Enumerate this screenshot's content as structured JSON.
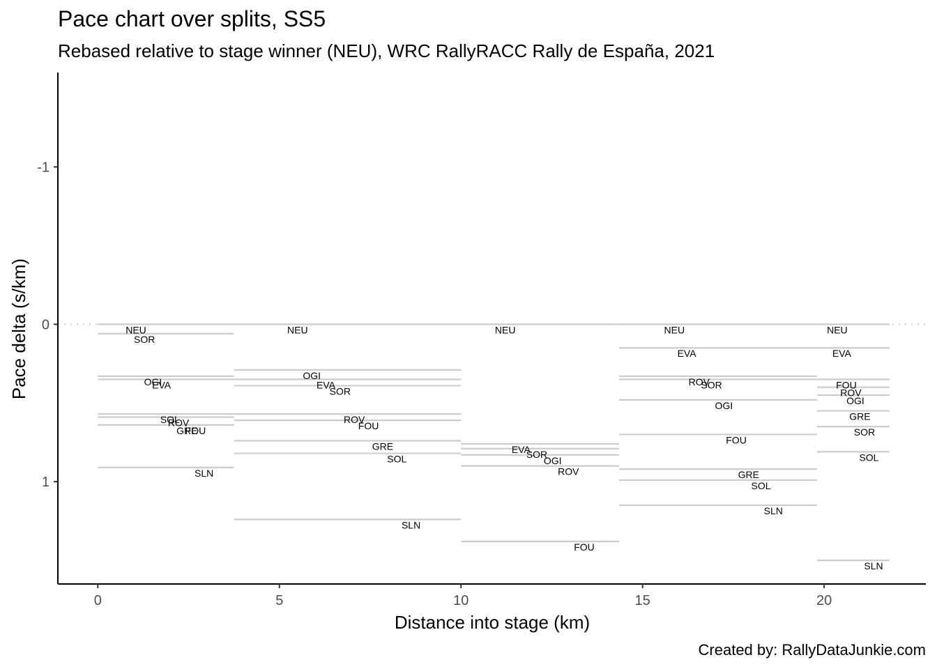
{
  "chart_data": {
    "type": "line",
    "title": "Pace chart over splits, SS5",
    "subtitle": "Rebased relative to stage winner (NEU), WRC RallyRACC Rally de España, 2021",
    "caption": "Created by: RallyDataJunkie.com",
    "xlabel": "Distance into stage (km)",
    "ylabel": "Pace delta (s/km)",
    "xlim": [
      -1.1,
      22.8
    ],
    "ylim": [
      -1.6,
      1.65
    ],
    "y_reversed": true,
    "x_ticks": [
      0,
      5,
      10,
      15,
      20
    ],
    "y_ticks": [
      -1,
      0,
      1
    ],
    "y_tick_labels": [
      "-1",
      "0",
      "1"
    ],
    "reference_line": {
      "y": 0,
      "style": "dotted"
    },
    "grid": false,
    "legend": "none",
    "colors": {
      "segment": "#cccccc",
      "reference": "#cccccc",
      "axis": "#000000",
      "tick_text": "#4d4d4d"
    },
    "splits": [
      {
        "x_start": 0,
        "x_end": 3.75,
        "series": [
          {
            "name": "NEU",
            "value": 0.0
          },
          {
            "name": "SOR",
            "value": 0.06
          },
          {
            "name": "OGI",
            "value": 0.33
          },
          {
            "name": "EVA",
            "value": 0.35
          },
          {
            "name": "SOL",
            "value": 0.57
          },
          {
            "name": "ROV",
            "value": 0.59
          },
          {
            "name": "GRE",
            "value": 0.64
          },
          {
            "name": "FOU",
            "value": 0.64
          },
          {
            "name": "SLN",
            "value": 0.91
          }
        ]
      },
      {
        "x_start": 3.75,
        "x_end": 10.0,
        "series": [
          {
            "name": "NEU",
            "value": 0.0
          },
          {
            "name": "OGI",
            "value": 0.29
          },
          {
            "name": "EVA",
            "value": 0.35
          },
          {
            "name": "SOR",
            "value": 0.39
          },
          {
            "name": "ROV",
            "value": 0.57
          },
          {
            "name": "FOU",
            "value": 0.61
          },
          {
            "name": "GRE",
            "value": 0.74
          },
          {
            "name": "SOL",
            "value": 0.82
          },
          {
            "name": "SLN",
            "value": 1.24
          }
        ]
      },
      {
        "x_start": 10.0,
        "x_end": 14.35,
        "series": [
          {
            "name": "NEU",
            "value": 0.0
          },
          {
            "name": "EVA",
            "value": 0.76
          },
          {
            "name": "SOR",
            "value": 0.79
          },
          {
            "name": "OGI",
            "value": 0.83
          },
          {
            "name": "ROV",
            "value": 0.9
          },
          {
            "name": "FOU",
            "value": 1.38
          }
        ]
      },
      {
        "x_start": 14.35,
        "x_end": 19.8,
        "series": [
          {
            "name": "NEU",
            "value": 0.0
          },
          {
            "name": "EVA",
            "value": 0.15
          },
          {
            "name": "ROV",
            "value": 0.33
          },
          {
            "name": "SOR",
            "value": 0.35
          },
          {
            "name": "OGI",
            "value": 0.48
          },
          {
            "name": "FOU",
            "value": 0.7
          },
          {
            "name": "GRE",
            "value": 0.92
          },
          {
            "name": "SOL",
            "value": 0.99
          },
          {
            "name": "SLN",
            "value": 1.15
          }
        ]
      },
      {
        "x_start": 19.8,
        "x_end": 21.8,
        "series": [
          {
            "name": "NEU",
            "value": 0.0
          },
          {
            "name": "EVA",
            "value": 0.15
          },
          {
            "name": "FOU",
            "value": 0.35
          },
          {
            "name": "ROV",
            "value": 0.4
          },
          {
            "name": "OGI",
            "value": 0.45
          },
          {
            "name": "GRE",
            "value": 0.55
          },
          {
            "name": "SOR",
            "value": 0.65
          },
          {
            "name": "SOL",
            "value": 0.81
          },
          {
            "name": "SLN",
            "value": 1.5
          }
        ]
      }
    ]
  }
}
